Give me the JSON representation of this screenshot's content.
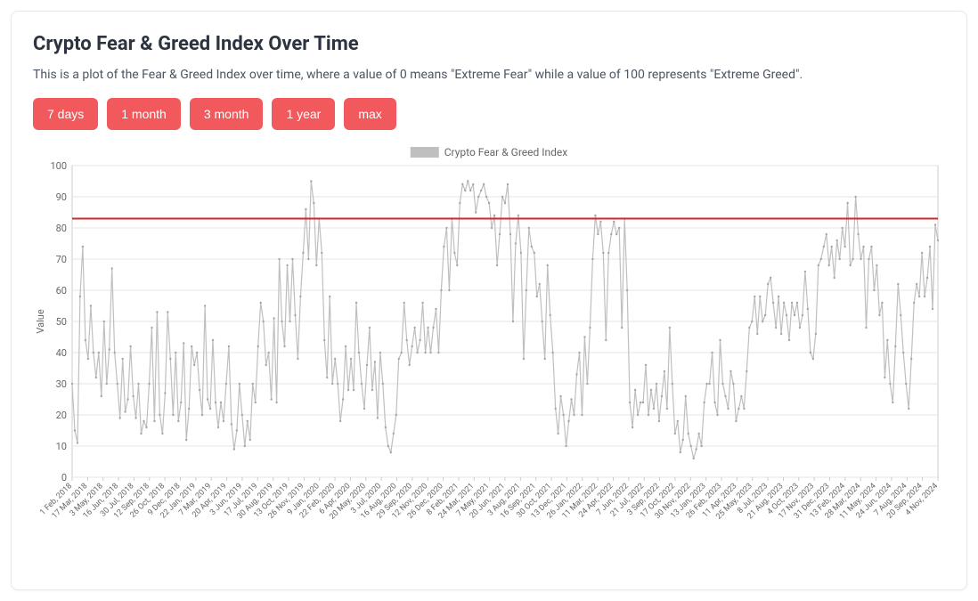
{
  "title": "Crypto Fear & Greed Index Over Time",
  "description": "This is a plot of the Fear & Greed Index over time, where a value of 0 means \"Extreme Fear\" while a value of 100 represents \"Extreme Greed\".",
  "buttons": {
    "d7": "7 days",
    "m1": "1 month",
    "m3": "3 month",
    "y1": "1 year",
    "max": "max"
  },
  "button_style": {
    "bg": "#f1595c",
    "fg": "#ffffff",
    "radius": 6,
    "fontsize": 14
  },
  "chart": {
    "type": "line",
    "legend_label": "Crypto Fear & Greed Index",
    "y_axis_title": "Value",
    "ylim": [
      0,
      100
    ],
    "ytick_step": 10,
    "reference_line": {
      "value": 83,
      "color": "#d62728",
      "width": 2
    },
    "series_color": "#bfbfbf",
    "marker_color": "#a6a6a6",
    "marker_radius": 1.2,
    "background_color": "#ffffff",
    "grid_color": "#e5e5e5",
    "border_color": "#cccccc",
    "label_fontsize": 9,
    "ylabel_fontsize": 11,
    "x_labels": [
      "1 Feb, 2018",
      "17 Mar, 2018",
      "3 May, 2018",
      "16 Jun, 2018",
      "30 Jul, 2018",
      "12 Sep, 2018",
      "26 Oct, 2018",
      "9 Dec, 2018",
      "22 Jan, 2019",
      "7 Mar, 2019",
      "20 Apr, 2019",
      "3 Jun, 2019",
      "17 Jul, 2019",
      "30 Aug, 2019",
      "13 Oct, 2019",
      "26 Nov, 2019",
      "9 Jan, 2020",
      "22 Feb, 2020",
      "6 Apr, 2020",
      "20 May, 2020",
      "3 Jul, 2020",
      "16 Aug, 2020",
      "29 Sep, 2020",
      "12 Nov, 2020",
      "26 Dec, 2020",
      "8 Feb, 2021",
      "24 Mar, 2021",
      "7 May, 2021",
      "20 Jun, 2021",
      "3 Aug, 2021",
      "16 Sep, 2021",
      "30 Oct, 2021",
      "13 Dec, 2021",
      "26 Jan, 2022",
      "11 Mar, 2022",
      "24 Apr, 2022",
      "7 Jun, 2022",
      "21 Jul, 2022",
      "3 Sep, 2022",
      "17 Oct, 2022",
      "30 Nov, 2022",
      "13 Jan, 2023",
      "26 Feb, 2023",
      "11 Apr, 2023",
      "25 May, 2023",
      "8 Jul, 2023",
      "21 Aug, 2023",
      "4 Oct, 2023",
      "17 Nov, 2023",
      "31 Dec, 2023",
      "13 Feb, 2024",
      "28 Mar, 2024",
      "11 May, 2024",
      "24 Jun, 2024",
      "7 Aug, 2024",
      "20 Sep, 2024",
      "4 Nov, 2024"
    ],
    "values": [
      30,
      15,
      11,
      58,
      74,
      44,
      38,
      55,
      40,
      32,
      40,
      26,
      50,
      30,
      41,
      67,
      40,
      30,
      19,
      38,
      21,
      25,
      42,
      26,
      19,
      30,
      14,
      18,
      16,
      30,
      48,
      18,
      53,
      20,
      14,
      27,
      53,
      38,
      20,
      40,
      18,
      24,
      43,
      12,
      22,
      42,
      36,
      40,
      28,
      20,
      55,
      25,
      22,
      44,
      24,
      16,
      24,
      18,
      30,
      42,
      17,
      9,
      15,
      30,
      20,
      10,
      18,
      12,
      30,
      24,
      42,
      56,
      50,
      36,
      40,
      25,
      51,
      24,
      70,
      50,
      42,
      68,
      50,
      70,
      52,
      38,
      58,
      72,
      86,
      70,
      95,
      88,
      68,
      83,
      72,
      44,
      32,
      58,
      30,
      38,
      30,
      18,
      25,
      42,
      28,
      38,
      28,
      56,
      40,
      30,
      22,
      36,
      48,
      28,
      37,
      19,
      40,
      30,
      16,
      10,
      8,
      14,
      20,
      38,
      40,
      56,
      44,
      36,
      42,
      48,
      40,
      44,
      56,
      40,
      48,
      40,
      48,
      54,
      40,
      60,
      74,
      80,
      60,
      83,
      72,
      68,
      88,
      94,
      92,
      95,
      92,
      94,
      85,
      90,
      92,
      94,
      90,
      88,
      80,
      84,
      68,
      78,
      90,
      88,
      94,
      78,
      50,
      75,
      84,
      72,
      38,
      60,
      80,
      74,
      72,
      58,
      62,
      50,
      38,
      68,
      52,
      40,
      22,
      14,
      26,
      20,
      10,
      18,
      25,
      20,
      33,
      40,
      20,
      45,
      30,
      48,
      70,
      84,
      78,
      82,
      72,
      44,
      72,
      78,
      82,
      78,
      80,
      48,
      83,
      60,
      24,
      16,
      28,
      20,
      24,
      24,
      36,
      20,
      28,
      22,
      30,
      18,
      26,
      34,
      22,
      48,
      30,
      14,
      18,
      8,
      12,
      26,
      14,
      10,
      6,
      9,
      14,
      10,
      24,
      30,
      30,
      40,
      24,
      20,
      44,
      30,
      26,
      22,
      34,
      30,
      18,
      22,
      26,
      22,
      34,
      48,
      50,
      58,
      46,
      58,
      50,
      52,
      62,
      64,
      56,
      48,
      58,
      46,
      56,
      52,
      44,
      56,
      52,
      56,
      48,
      52,
      66,
      54,
      40,
      38,
      46,
      68,
      70,
      74,
      78,
      68,
      74,
      64,
      76,
      70,
      80,
      74,
      88,
      68,
      70,
      90,
      78,
      70,
      74,
      48,
      70,
      74,
      60,
      68,
      52,
      56,
      32,
      44,
      30,
      24,
      42,
      62,
      52,
      40,
      30,
      22,
      38,
      56,
      62,
      58,
      72,
      58,
      64,
      74,
      54,
      81,
      76
    ]
  }
}
